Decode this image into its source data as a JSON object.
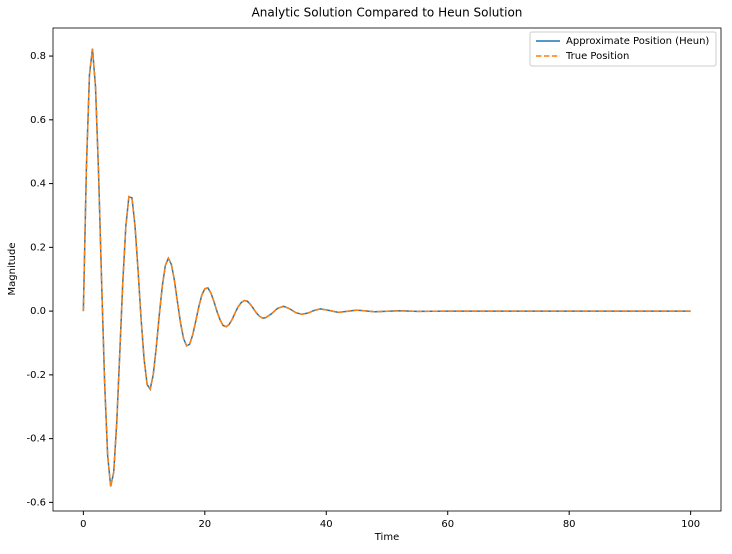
{
  "chart_data": {
    "type": "line",
    "title": "Analytic Solution Compared to Heun Solution",
    "x_label": "Time",
    "y_label": "Magnitude",
    "x": [
      0,
      0.5,
      1,
      1.5,
      2,
      2.5,
      3,
      3.5,
      4,
      4.5,
      5,
      5.5,
      6,
      6.5,
      7,
      7.5,
      8,
      8.5,
      9,
      9.5,
      10,
      10.5,
      11,
      11.5,
      12,
      12.5,
      13,
      13.5,
      14,
      14.5,
      15,
      15.5,
      16,
      16.5,
      17,
      17.5,
      18,
      18.5,
      19,
      19.5,
      20,
      20.5,
      21,
      21.5,
      22,
      22.5,
      23,
      23.5,
      24,
      24.5,
      25,
      25.5,
      26,
      26.5,
      27,
      27.5,
      28,
      28.5,
      29,
      29.5,
      30,
      31,
      32,
      33,
      34,
      35,
      36,
      37,
      38,
      39,
      40,
      42,
      45,
      48,
      52,
      55,
      60,
      70,
      80,
      90,
      100
    ],
    "series": [
      {
        "name": "Approximate Position (Heun)",
        "color": "#1f77b4",
        "dash": false,
        "values": [
          0,
          0.449,
          0.74,
          0.823,
          0.704,
          0.434,
          0.096,
          -0.224,
          -0.453,
          -0.55,
          -0.505,
          -0.349,
          -0.13,
          0.094,
          0.268,
          0.359,
          0.355,
          0.269,
          0.13,
          -0.022,
          -0.151,
          -0.23,
          -0.245,
          -0.2,
          -0.115,
          -0.013,
          0.079,
          0.143,
          0.166,
          0.146,
          0.096,
          0.028,
          -0.037,
          -0.086,
          -0.109,
          -0.104,
          -0.075,
          -0.032,
          0.013,
          0.05,
          0.07,
          0.073,
          0.057,
          0.03,
          -0.001,
          -0.027,
          -0.045,
          -0.049,
          -0.042,
          -0.026,
          -0.005,
          0.014,
          0.027,
          0.033,
          0.031,
          0.021,
          0.008,
          -0.006,
          -0.016,
          -0.022,
          -0.021,
          -0.008,
          0.009,
          0.015,
          0.007,
          -0.005,
          -0.01,
          -0.006,
          0.002,
          0.007,
          0.004,
          -0.004,
          0.003,
          -0.002,
          0.001,
          -0.001,
          0,
          0,
          0,
          0,
          0
        ]
      },
      {
        "name": "True Position",
        "color": "#ff7f0e",
        "dash": true,
        "values": [
          0,
          0.449,
          0.74,
          0.823,
          0.704,
          0.434,
          0.096,
          -0.224,
          -0.453,
          -0.55,
          -0.505,
          -0.349,
          -0.13,
          0.094,
          0.268,
          0.359,
          0.355,
          0.269,
          0.13,
          -0.022,
          -0.151,
          -0.23,
          -0.245,
          -0.2,
          -0.115,
          -0.013,
          0.079,
          0.143,
          0.166,
          0.146,
          0.096,
          0.028,
          -0.037,
          -0.086,
          -0.109,
          -0.104,
          -0.075,
          -0.032,
          0.013,
          0.05,
          0.07,
          0.073,
          0.057,
          0.03,
          -0.001,
          -0.027,
          -0.045,
          -0.049,
          -0.042,
          -0.026,
          -0.005,
          0.014,
          0.027,
          0.033,
          0.031,
          0.021,
          0.008,
          -0.006,
          -0.016,
          -0.022,
          -0.021,
          -0.008,
          0.009,
          0.015,
          0.007,
          -0.005,
          -0.01,
          -0.006,
          0.002,
          0.007,
          0.004,
          -0.004,
          0.003,
          -0.002,
          0.001,
          -0.001,
          0,
          0,
          0,
          0,
          0
        ]
      }
    ],
    "xlim": [
      -5,
      105
    ],
    "ylim": [
      -0.627,
      0.888
    ],
    "xticks": [
      0,
      20,
      40,
      60,
      80,
      100
    ],
    "yticks": [
      -0.6,
      -0.4,
      -0.2,
      {
        "value": 0,
        "label": "0.0"
      },
      0.2,
      0.4,
      0.6,
      0.8
    ],
    "legend": "upper right",
    "grid": false
  }
}
